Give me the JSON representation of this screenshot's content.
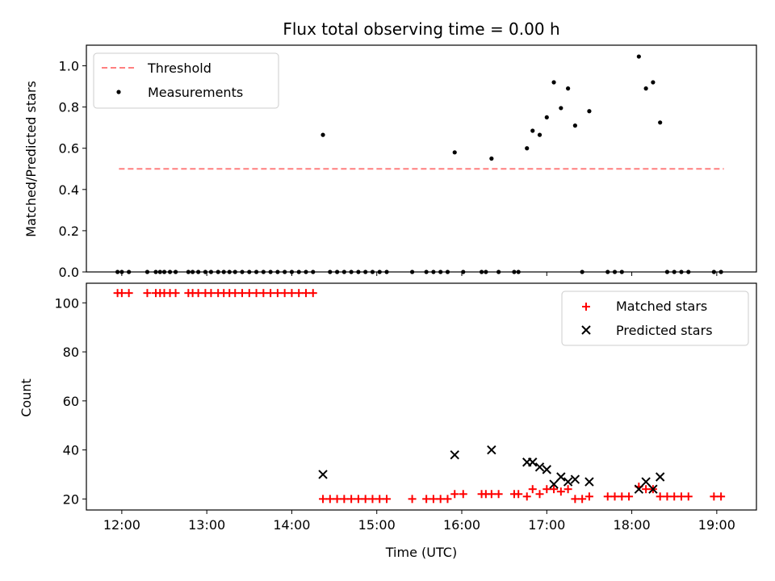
{
  "chart_data": [
    {
      "type": "scatter",
      "title": "Flux total observing time = 0.00 h",
      "xlabel": "",
      "ylabel": "Matched/Predicted stars",
      "xlim": [
        "11:35",
        "19:28"
      ],
      "ylim": [
        0,
        1.1
      ],
      "xticks": [
        "12:00",
        "13:00",
        "14:00",
        "15:00",
        "16:00",
        "17:00",
        "18:00",
        "19:00"
      ],
      "yticks": [
        0.0,
        0.2,
        0.4,
        0.6,
        0.8,
        1.0
      ],
      "ytick_labels": [
        "0.0",
        "0.2",
        "0.4",
        "0.6",
        "0.8",
        "1.0"
      ],
      "legend": {
        "placement": "upper-left",
        "entries": [
          "Threshold",
          "Measurements"
        ]
      },
      "series": [
        {
          "name": "Threshold",
          "kind": "dashed-line",
          "color": "#ff7f7f",
          "points": [
            [
              "11:58",
              0.5
            ],
            [
              "19:05",
              0.5
            ]
          ]
        },
        {
          "name": "Measurements",
          "kind": "points",
          "color": "#000000",
          "points": [
            [
              "11:57",
              0
            ],
            [
              "12:00",
              0
            ],
            [
              "12:05",
              0
            ],
            [
              "12:18",
              0
            ],
            [
              "12:24",
              0
            ],
            [
              "12:27",
              0
            ],
            [
              "12:30",
              0
            ],
            [
              "12:34",
              0
            ],
            [
              "12:38",
              0
            ],
            [
              "12:47",
              0
            ],
            [
              "12:50",
              0
            ],
            [
              "12:54",
              0
            ],
            [
              "12:59",
              0
            ],
            [
              "13:03",
              0
            ],
            [
              "13:08",
              0
            ],
            [
              "13:12",
              0
            ],
            [
              "13:16",
              0
            ],
            [
              "13:20",
              0
            ],
            [
              "13:25",
              0
            ],
            [
              "13:30",
              0
            ],
            [
              "13:35",
              0
            ],
            [
              "13:40",
              0
            ],
            [
              "13:45",
              0
            ],
            [
              "13:50",
              0
            ],
            [
              "13:55",
              0
            ],
            [
              "14:00",
              0
            ],
            [
              "14:05",
              0
            ],
            [
              "14:10",
              0
            ],
            [
              "14:15",
              0
            ],
            [
              "14:22",
              0.665
            ],
            [
              "14:27",
              0
            ],
            [
              "14:32",
              0
            ],
            [
              "14:37",
              0
            ],
            [
              "14:42",
              0
            ],
            [
              "14:47",
              0
            ],
            [
              "14:52",
              0
            ],
            [
              "14:57",
              0
            ],
            [
              "15:02",
              0
            ],
            [
              "15:07",
              0
            ],
            [
              "15:25",
              0
            ],
            [
              "15:35",
              0
            ],
            [
              "15:40",
              0
            ],
            [
              "15:45",
              0
            ],
            [
              "15:50",
              0
            ],
            [
              "15:55",
              0.58
            ],
            [
              "16:01",
              0
            ],
            [
              "16:14",
              0
            ],
            [
              "16:17",
              0
            ],
            [
              "16:21",
              0.55
            ],
            [
              "16:26",
              0
            ],
            [
              "16:37",
              0
            ],
            [
              "16:40",
              0
            ],
            [
              "16:46",
              0.6
            ],
            [
              "16:50",
              0.685
            ],
            [
              "16:55",
              0.665
            ],
            [
              "17:00",
              0.75
            ],
            [
              "17:05",
              0.92
            ],
            [
              "17:10",
              0.795
            ],
            [
              "17:15",
              0.89
            ],
            [
              "17:20",
              0.71
            ],
            [
              "17:25",
              0
            ],
            [
              "17:30",
              0.78
            ],
            [
              "17:43",
              0
            ],
            [
              "17:48",
              0
            ],
            [
              "17:53",
              0
            ],
            [
              "18:05",
              1.045
            ],
            [
              "18:10",
              0.89
            ],
            [
              "18:15",
              0.92
            ],
            [
              "18:20",
              0.725
            ],
            [
              "18:25",
              0
            ],
            [
              "18:30",
              0
            ],
            [
              "18:35",
              0
            ],
            [
              "18:40",
              0
            ],
            [
              "18:58",
              0
            ],
            [
              "19:03",
              0
            ]
          ]
        }
      ]
    },
    {
      "type": "scatter",
      "title": "",
      "xlabel": "Time (UTC)",
      "ylabel": "Count",
      "xlim": [
        "11:35",
        "19:28"
      ],
      "ylim": [
        15.5,
        108
      ],
      "xticks": [
        "12:00",
        "13:00",
        "14:00",
        "15:00",
        "16:00",
        "17:00",
        "18:00",
        "19:00"
      ],
      "yticks": [
        20,
        40,
        60,
        80,
        100
      ],
      "ytick_labels": [
        "20",
        "40",
        "60",
        "80",
        "100"
      ],
      "legend": {
        "placement": "upper-right",
        "entries": [
          "Matched stars",
          "Predicted stars"
        ]
      },
      "series": [
        {
          "name": "Matched stars",
          "marker": "plus",
          "color": "#ff0000",
          "points": [
            [
              "11:57",
              104
            ],
            [
              "12:00",
              104
            ],
            [
              "12:05",
              104
            ],
            [
              "12:18",
              104
            ],
            [
              "12:24",
              104
            ],
            [
              "12:27",
              104
            ],
            [
              "12:30",
              104
            ],
            [
              "12:34",
              104
            ],
            [
              "12:38",
              104
            ],
            [
              "12:47",
              104
            ],
            [
              "12:50",
              104
            ],
            [
              "12:54",
              104
            ],
            [
              "12:59",
              104
            ],
            [
              "13:03",
              104
            ],
            [
              "13:08",
              104
            ],
            [
              "13:12",
              104
            ],
            [
              "13:16",
              104
            ],
            [
              "13:20",
              104
            ],
            [
              "13:25",
              104
            ],
            [
              "13:30",
              104
            ],
            [
              "13:35",
              104
            ],
            [
              "13:40",
              104
            ],
            [
              "13:45",
              104
            ],
            [
              "13:50",
              104
            ],
            [
              "13:55",
              104
            ],
            [
              "14:00",
              104
            ],
            [
              "14:05",
              104
            ],
            [
              "14:10",
              104
            ],
            [
              "14:15",
              104
            ],
            [
              "14:22",
              20
            ],
            [
              "14:27",
              20
            ],
            [
              "14:32",
              20
            ],
            [
              "14:37",
              20
            ],
            [
              "14:42",
              20
            ],
            [
              "14:47",
              20
            ],
            [
              "14:52",
              20
            ],
            [
              "14:57",
              20
            ],
            [
              "15:02",
              20
            ],
            [
              "15:07",
              20
            ],
            [
              "15:25",
              20
            ],
            [
              "15:35",
              20
            ],
            [
              "15:40",
              20
            ],
            [
              "15:45",
              20
            ],
            [
              "15:50",
              20
            ],
            [
              "15:55",
              22
            ],
            [
              "16:01",
              22
            ],
            [
              "16:14",
              22
            ],
            [
              "16:17",
              22
            ],
            [
              "16:21",
              22
            ],
            [
              "16:26",
              22
            ],
            [
              "16:37",
              22
            ],
            [
              "16:40",
              22
            ],
            [
              "16:46",
              21
            ],
            [
              "16:50",
              24
            ],
            [
              "16:55",
              22
            ],
            [
              "17:00",
              24
            ],
            [
              "17:05",
              24
            ],
            [
              "17:10",
              23
            ],
            [
              "17:15",
              24
            ],
            [
              "17:20",
              20
            ],
            [
              "17:25",
              20
            ],
            [
              "17:30",
              21
            ],
            [
              "17:43",
              21
            ],
            [
              "17:48",
              21
            ],
            [
              "17:53",
              21
            ],
            [
              "17:58",
              21
            ],
            [
              "18:05",
              25
            ],
            [
              "18:10",
              24
            ],
            [
              "18:15",
              24
            ],
            [
              "18:20",
              21
            ],
            [
              "18:25",
              21
            ],
            [
              "18:30",
              21
            ],
            [
              "18:35",
              21
            ],
            [
              "18:40",
              21
            ],
            [
              "18:58",
              21
            ],
            [
              "19:03",
              21
            ]
          ]
        },
        {
          "name": "Predicted stars",
          "marker": "x",
          "color": "#000000",
          "points": [
            [
              "14:22",
              30
            ],
            [
              "15:55",
              38
            ],
            [
              "16:21",
              40
            ],
            [
              "16:46",
              35
            ],
            [
              "16:50",
              35
            ],
            [
              "16:55",
              33
            ],
            [
              "17:00",
              32
            ],
            [
              "17:05",
              26
            ],
            [
              "17:10",
              29
            ],
            [
              "17:15",
              27
            ],
            [
              "17:20",
              28
            ],
            [
              "17:30",
              27
            ],
            [
              "18:05",
              24
            ],
            [
              "18:10",
              27
            ],
            [
              "18:15",
              24
            ],
            [
              "18:20",
              29
            ]
          ]
        }
      ]
    }
  ]
}
